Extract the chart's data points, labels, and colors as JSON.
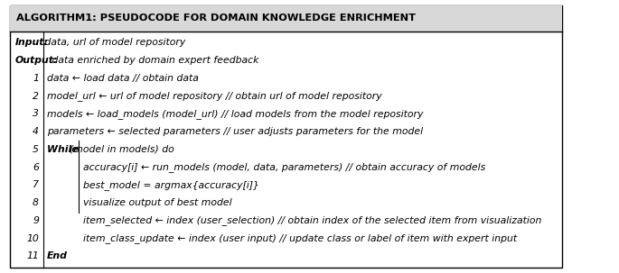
{
  "title": "ALGORITHM1: PSEUDOCODE FOR DOMAIN KNOWLEDGE ENRICHMENT",
  "input_label": "Input:",
  "input_text": " data, url of model repository",
  "output_label": "Output:",
  "output_text": " data enriched by domain expert feedback",
  "lines": [
    {
      "num": "1",
      "indent": 0,
      "bold_part": "",
      "italic_part": "data ← load data // obtain data"
    },
    {
      "num": "2",
      "indent": 0,
      "bold_part": "",
      "italic_part": "model_url ← url of model repository // obtain url of model repository"
    },
    {
      "num": "3",
      "indent": 0,
      "bold_part": "",
      "italic_part": "models ← load_models (model_url) // load models from the model repository"
    },
    {
      "num": "4",
      "indent": 0,
      "bold_part": "",
      "italic_part": "parameters ← selected parameters // user adjusts parameters for the model"
    },
    {
      "num": "5",
      "indent": 0,
      "bold_part": "While ",
      "italic_part": "(model in models) do"
    },
    {
      "num": "6",
      "indent": 1,
      "bold_part": "",
      "italic_part": "accuracy[i] ← run_models (model, data, parameters) // obtain accuracy of models"
    },
    {
      "num": "7",
      "indent": 1,
      "bold_part": "",
      "italic_part": "best_model = argmax{accuracy[i]}"
    },
    {
      "num": "8",
      "indent": 1,
      "bold_part": "",
      "italic_part": "visualize output of best model"
    },
    {
      "num": "9",
      "indent": 1,
      "bold_part": "",
      "italic_part": "item_selected ← index (user_selection) // obtain index of the selected item from visualization"
    },
    {
      "num": "10",
      "indent": 1,
      "bold_part": "",
      "italic_part": "item_class_update ← index (user input) // update class or label of item with expert input"
    },
    {
      "num": "11",
      "indent": 0,
      "bold_part": "End",
      "italic_part": ""
    }
  ],
  "bg_color": "#ffffff",
  "border_color": "#000000",
  "title_bg_color": "#d8d8d8",
  "font_color": "#000000",
  "font_size": 7.8,
  "title_font_size": 8.2
}
